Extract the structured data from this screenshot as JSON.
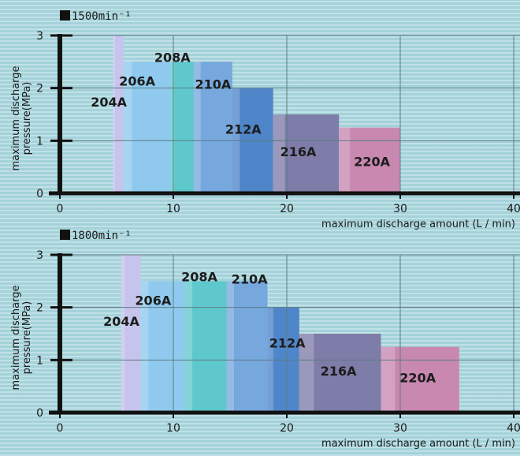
{
  "chart_data": [
    {
      "type": "bar",
      "title": "1500min⁻¹",
      "xlabel": "maximum discharge amount (L / min)",
      "ylabel": [
        "maximum discharge",
        "pressure(MPa)"
      ],
      "xlim": [
        0,
        40
      ],
      "ylim": [
        0,
        3
      ],
      "xticks": [
        0,
        10,
        20,
        30,
        40
      ],
      "yticks": [
        1,
        2,
        3
      ],
      "grid": true,
      "bars": [
        {
          "label": "204A",
          "x0": 4.7,
          "x1": 5.6,
          "y": 3.0,
          "color": "#c6c3ec"
        },
        {
          "label": "206A",
          "x0": 5.6,
          "x1": 9.7,
          "y": 2.5,
          "color": "#8fcaee"
        },
        {
          "label": "208A",
          "x0": 9.7,
          "x1": 11.8,
          "y": 2.5,
          "color": "#5fc8cc"
        },
        {
          "label": "210A",
          "x0": 11.8,
          "x1": 15.2,
          "y": 2.5,
          "color": "#76a8de"
        },
        {
          "label": "212A",
          "x0": 15.2,
          "x1": 18.8,
          "y": 2.0,
          "color": "#4f86c9"
        },
        {
          "label": "216A",
          "x0": 18.8,
          "x1": 24.6,
          "y": 1.5,
          "color": "#7e7ca8"
        },
        {
          "label": "220A",
          "x0": 24.6,
          "x1": 30.0,
          "y": 1.25,
          "color": "#c888b0"
        }
      ]
    },
    {
      "type": "bar",
      "title": "1800min⁻¹",
      "xlabel": "maximum discharge amount (L / min)",
      "ylabel": [
        "maximum discharge",
        "pressure(MPa)"
      ],
      "xlim": [
        0,
        40
      ],
      "ylim": [
        0,
        3
      ],
      "xticks": [
        0,
        10,
        20,
        30,
        40
      ],
      "yticks": [
        1,
        2,
        3
      ],
      "grid": true,
      "bars": [
        {
          "label": "204A",
          "x0": 5.4,
          "x1": 7.1,
          "y": 3.0,
          "color": "#c6c3ec"
        },
        {
          "label": "206A",
          "x0": 7.1,
          "x1": 11.0,
          "y": 2.5,
          "color": "#8fcaee"
        },
        {
          "label": "208A",
          "x0": 11.0,
          "x1": 14.7,
          "y": 2.5,
          "color": "#5fc8cc"
        },
        {
          "label": "210A",
          "x0": 14.7,
          "x1": 18.3,
          "y": 2.5,
          "color": "#76a8de"
        },
        {
          "label": "212A",
          "x0": 18.3,
          "x1": 21.1,
          "y": 2.0,
          "color": "#4f86c9"
        },
        {
          "label": "216A",
          "x0": 21.1,
          "x1": 28.3,
          "y": 1.5,
          "color": "#7e7ca8"
        },
        {
          "label": "220A",
          "x0": 28.3,
          "x1": 35.2,
          "y": 1.25,
          "color": "#c888b0"
        }
      ]
    }
  ]
}
